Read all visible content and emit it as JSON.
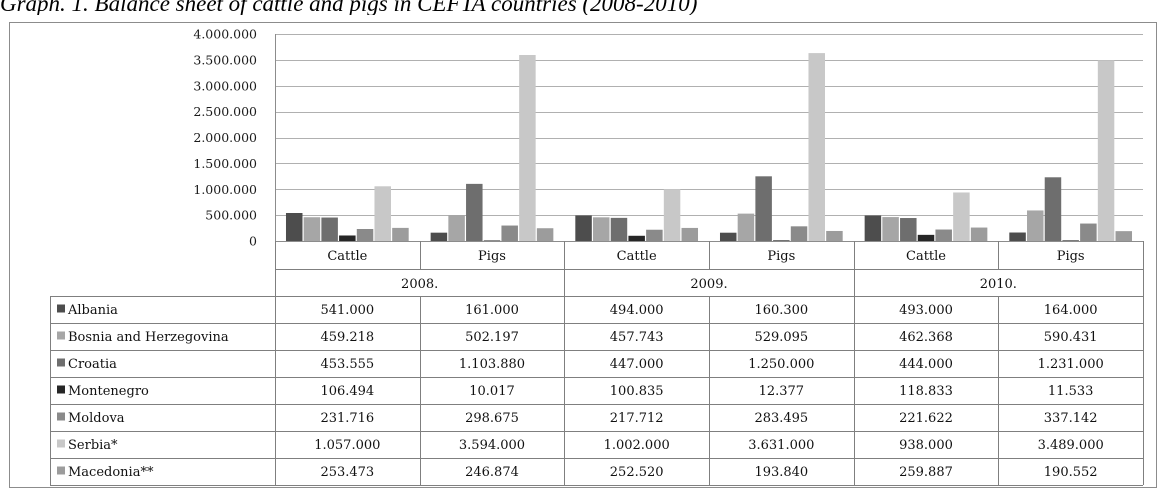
{
  "caption": "Graph. 1. Balance sheet of cattle and pigs in CEFTA countries (2008-2010)",
  "chart_data": {
    "type": "bar",
    "title": "Graph. 1. Balance sheet of cattle and pigs in CEFTA countries (2008-2010)",
    "ylim": [
      0,
      4000000
    ],
    "y_ticks": [
      "0",
      "500.000",
      "1.000.000",
      "1.500.000",
      "2.000.000",
      "2.500.000",
      "3.000.000",
      "3.500.000",
      "4.000.000"
    ],
    "y_tick_values": [
      0,
      500000,
      1000000,
      1500000,
      2000000,
      2500000,
      3000000,
      3500000,
      4000000
    ],
    "categories": [
      "Cattle",
      "Pigs",
      "Cattle",
      "Pigs",
      "Cattle",
      "Pigs"
    ],
    "groups": [
      "2008.",
      "2009.",
      "2010."
    ],
    "grid": true,
    "legend": "data-table-left",
    "series": [
      {
        "name": "Albania",
        "color": "#4d4d4d",
        "values": [
          541000,
          161000,
          494000,
          160300,
          493000,
          164000
        ],
        "labels": [
          "541.000",
          "161.000",
          "494.000",
          "160.300",
          "493.000",
          "164.000"
        ]
      },
      {
        "name": "Bosnia and Herzegovina",
        "color": "#a6a6a6",
        "values": [
          459218,
          502197,
          457743,
          529095,
          462368,
          590431
        ],
        "labels": [
          "459.218",
          "502.197",
          "457.743",
          "529.095",
          "462.368",
          "590.431"
        ]
      },
      {
        "name": "Croatia",
        "color": "#6e6e6e",
        "values": [
          453555,
          1103880,
          447000,
          1250000,
          444000,
          1231000
        ],
        "labels": [
          "453.555",
          "1.103.880",
          "447.000",
          "1.250.000",
          "444.000",
          "1.231.000"
        ]
      },
      {
        "name": "Montenegro",
        "color": "#262626",
        "values": [
          106494,
          10017,
          100835,
          12377,
          118833,
          11533
        ],
        "labels": [
          "106.494",
          "10.017",
          "100.835",
          "12.377",
          "118.833",
          "11.533"
        ]
      },
      {
        "name": "Moldova",
        "color": "#8a8a8a",
        "values": [
          231716,
          298675,
          217712,
          283495,
          221622,
          337142
        ],
        "labels": [
          "231.716",
          "298.675",
          "217.712",
          "283.495",
          "221.622",
          "337.142"
        ]
      },
      {
        "name": "Serbia*",
        "color": "#c8c8c8",
        "values": [
          1057000,
          3594000,
          1002000,
          3631000,
          938000,
          3489000
        ],
        "labels": [
          "1.057.000",
          "3.594.000",
          "1.002.000",
          "3.631.000",
          "938.000",
          "3.489.000"
        ]
      },
      {
        "name": "Macedonia**",
        "color": "#9c9c9c",
        "values": [
          253473,
          246874,
          252520,
          193840,
          259887,
          190552
        ],
        "labels": [
          "253.473",
          "246.874",
          "252.520",
          "193.840",
          "259.887",
          "190.552"
        ]
      }
    ]
  }
}
